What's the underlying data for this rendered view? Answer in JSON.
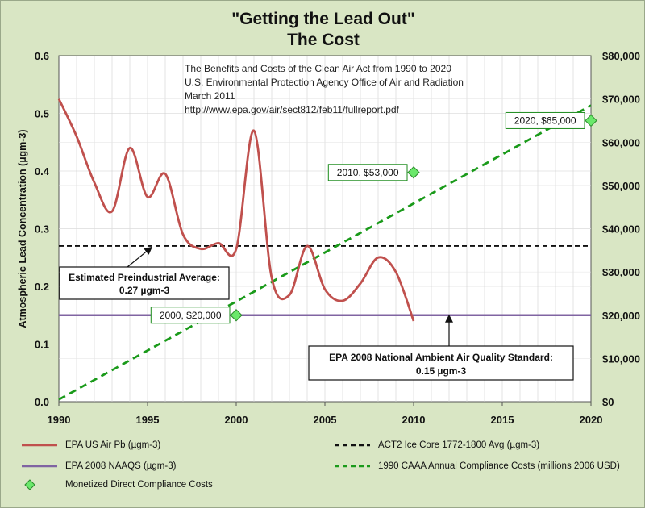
{
  "chart_data": {
    "type": "line",
    "title": "\"Getting the Lead Out\"",
    "subtitle": "The Cost",
    "ylabel": "Atmospheric Lead Concentration (µgm-3)",
    "xlim": [
      1990,
      2020
    ],
    "ylim": [
      0,
      0.6
    ],
    "y2lim": [
      0,
      80000
    ],
    "x_ticks": [
      "1990",
      "1995",
      "2000",
      "2005",
      "2010",
      "2015",
      "2020"
    ],
    "y_ticks": [
      "0.0",
      "0.1",
      "0.2",
      "0.3",
      "0.4",
      "0.5",
      "0.6"
    ],
    "y2_ticks": [
      "$0",
      "$10,000",
      "$20,000",
      "$30,000",
      "$40,000",
      "$50,000",
      "$60,000",
      "$70,000",
      "$80,000"
    ],
    "grid": true,
    "legend_position": "bottom",
    "source_note": [
      "The Benefits and Costs of the Clean Air Act from 1990 to 2020",
      "U.S. Environmental Protection Agency Office of Air and Radiation",
      "March 2011",
      "http://www.epa.gov/air/sect812/feb11/fullreport.pdf"
    ],
    "series": [
      {
        "name": "EPA US Air Pb (µgm-3)",
        "color": "#c0504d",
        "style": "solid-smooth",
        "axis": "left",
        "x": [
          1990,
          1991,
          1992,
          1993,
          1994,
          1995,
          1996,
          1997,
          1998,
          1999,
          2000,
          2001,
          2002,
          2003,
          2004,
          2005,
          2006,
          2007,
          2008,
          2009,
          2010
        ],
        "y": [
          0.525,
          0.46,
          0.38,
          0.33,
          0.44,
          0.355,
          0.395,
          0.29,
          0.265,
          0.275,
          0.265,
          0.47,
          0.215,
          0.185,
          0.27,
          0.195,
          0.175,
          0.205,
          0.25,
          0.225,
          0.14
        ]
      },
      {
        "name": "ACT2 Ice Core 1772-1800 Avg (µgm-3)",
        "color": "#111111",
        "style": "dashed",
        "axis": "left",
        "x": [
          1990,
          2020
        ],
        "y": [
          0.27,
          0.27
        ]
      },
      {
        "name": "EPA 2008 NAAQS (µgm-3)",
        "color": "#8064a2",
        "style": "solid",
        "axis": "left",
        "x": [
          1990,
          2020
        ],
        "y": [
          0.15,
          0.15
        ]
      },
      {
        "name": "1990 CAAA Annual Compliance Costs (millions 2006 USD)",
        "color": "#1a9a1a",
        "style": "dashed",
        "axis": "right",
        "x": [
          1990,
          2020
        ],
        "y": [
          500,
          68500
        ]
      },
      {
        "name": "Monetized Direct Compliance Costs",
        "color": "#6be86b",
        "style": "markers",
        "axis": "right",
        "x": [
          2000,
          2010,
          2020
        ],
        "y": [
          20000,
          53000,
          65000
        ],
        "labels": [
          "2000, $20,000",
          "2010, $53,000",
          "2020, $65,000"
        ]
      }
    ],
    "annotations": [
      {
        "lines": [
          "Estimated Preindustrial Average:",
          "0.27 µgm-3"
        ],
        "target_x": 1995.1,
        "target_y": 0.27
      },
      {
        "lines": [
          "EPA 2008 National Ambient Air Quality Standard:",
          "0.15 µgm-3"
        ],
        "target_x": 2012,
        "target_y": 0.15
      }
    ]
  },
  "legend": [
    {
      "label": "EPA US Air Pb (µgm-3)",
      "swatch": "solid",
      "color": "#c0504d"
    },
    {
      "label": "ACT2 Ice Core 1772-1800 Avg (µgm-3)",
      "swatch": "dashed",
      "color": "#111111"
    },
    {
      "label": "EPA 2008 NAAQS (µgm-3)",
      "swatch": "solid",
      "color": "#8064a2"
    },
    {
      "label": "1990 CAAA Annual Compliance Costs (millions 2006 USD)",
      "swatch": "dashed",
      "color": "#1a9a1a"
    },
    {
      "label": "Monetized Direct Compliance Costs",
      "swatch": "marker",
      "color": "#6be86b"
    }
  ]
}
